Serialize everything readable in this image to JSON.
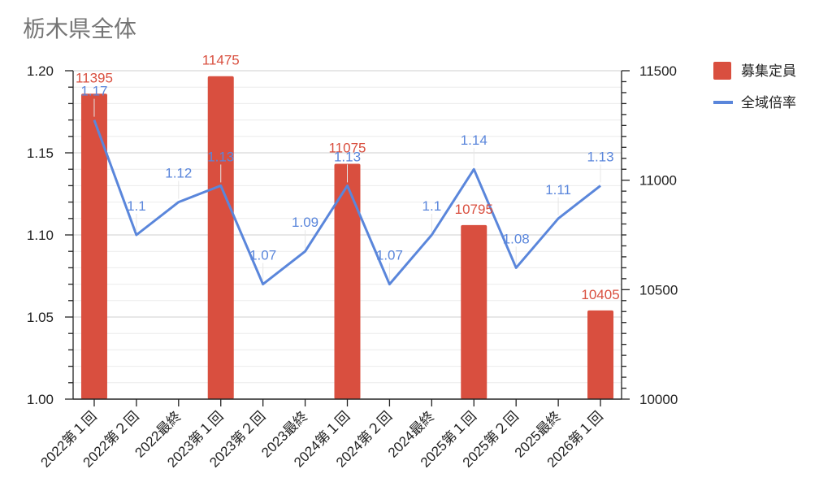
{
  "chart_data": {
    "type": "bar+line",
    "title": "栃木県全体",
    "categories": [
      "2022第１回",
      "2022第２回",
      "2022最終",
      "2023第１回",
      "2023第２回",
      "2023最終",
      "2024第１回",
      "2024第２回",
      "2024最終",
      "2025第１回",
      "2025第２回",
      "2025最終",
      "2026第１回"
    ],
    "series": [
      {
        "name": "募集定員",
        "type": "bar",
        "axis": "right",
        "color": "#d94f3f",
        "values": [
          11395,
          null,
          null,
          11475,
          null,
          null,
          11075,
          null,
          null,
          10795,
          null,
          null,
          10405
        ],
        "labels": [
          "11395",
          "",
          "",
          "11475",
          "",
          "",
          "11075",
          "",
          "",
          "10795",
          "",
          "",
          "10405"
        ]
      },
      {
        "name": "全域倍率",
        "type": "line",
        "axis": "left",
        "color": "#5a86db",
        "values": [
          1.17,
          1.1,
          1.12,
          1.13,
          1.07,
          1.09,
          1.13,
          1.07,
          1.1,
          1.14,
          1.08,
          1.11,
          1.13
        ],
        "labels": [
          "1.17",
          "1.1",
          "1.12",
          "1.13",
          "1.07",
          "1.09",
          "1.13",
          "1.07",
          "1.1",
          "1.14",
          "1.08",
          "1.11",
          "1.13"
        ]
      }
    ],
    "left_axis": {
      "min": 1.0,
      "max": 1.2,
      "ticks": [
        "1.00",
        "1.05",
        "1.10",
        "1.15",
        "1.20"
      ]
    },
    "right_axis": {
      "min": 10000,
      "max": 11500,
      "ticks": [
        "10000",
        "10500",
        "11000",
        "11500"
      ]
    },
    "grid": true,
    "legend_position": "right"
  }
}
